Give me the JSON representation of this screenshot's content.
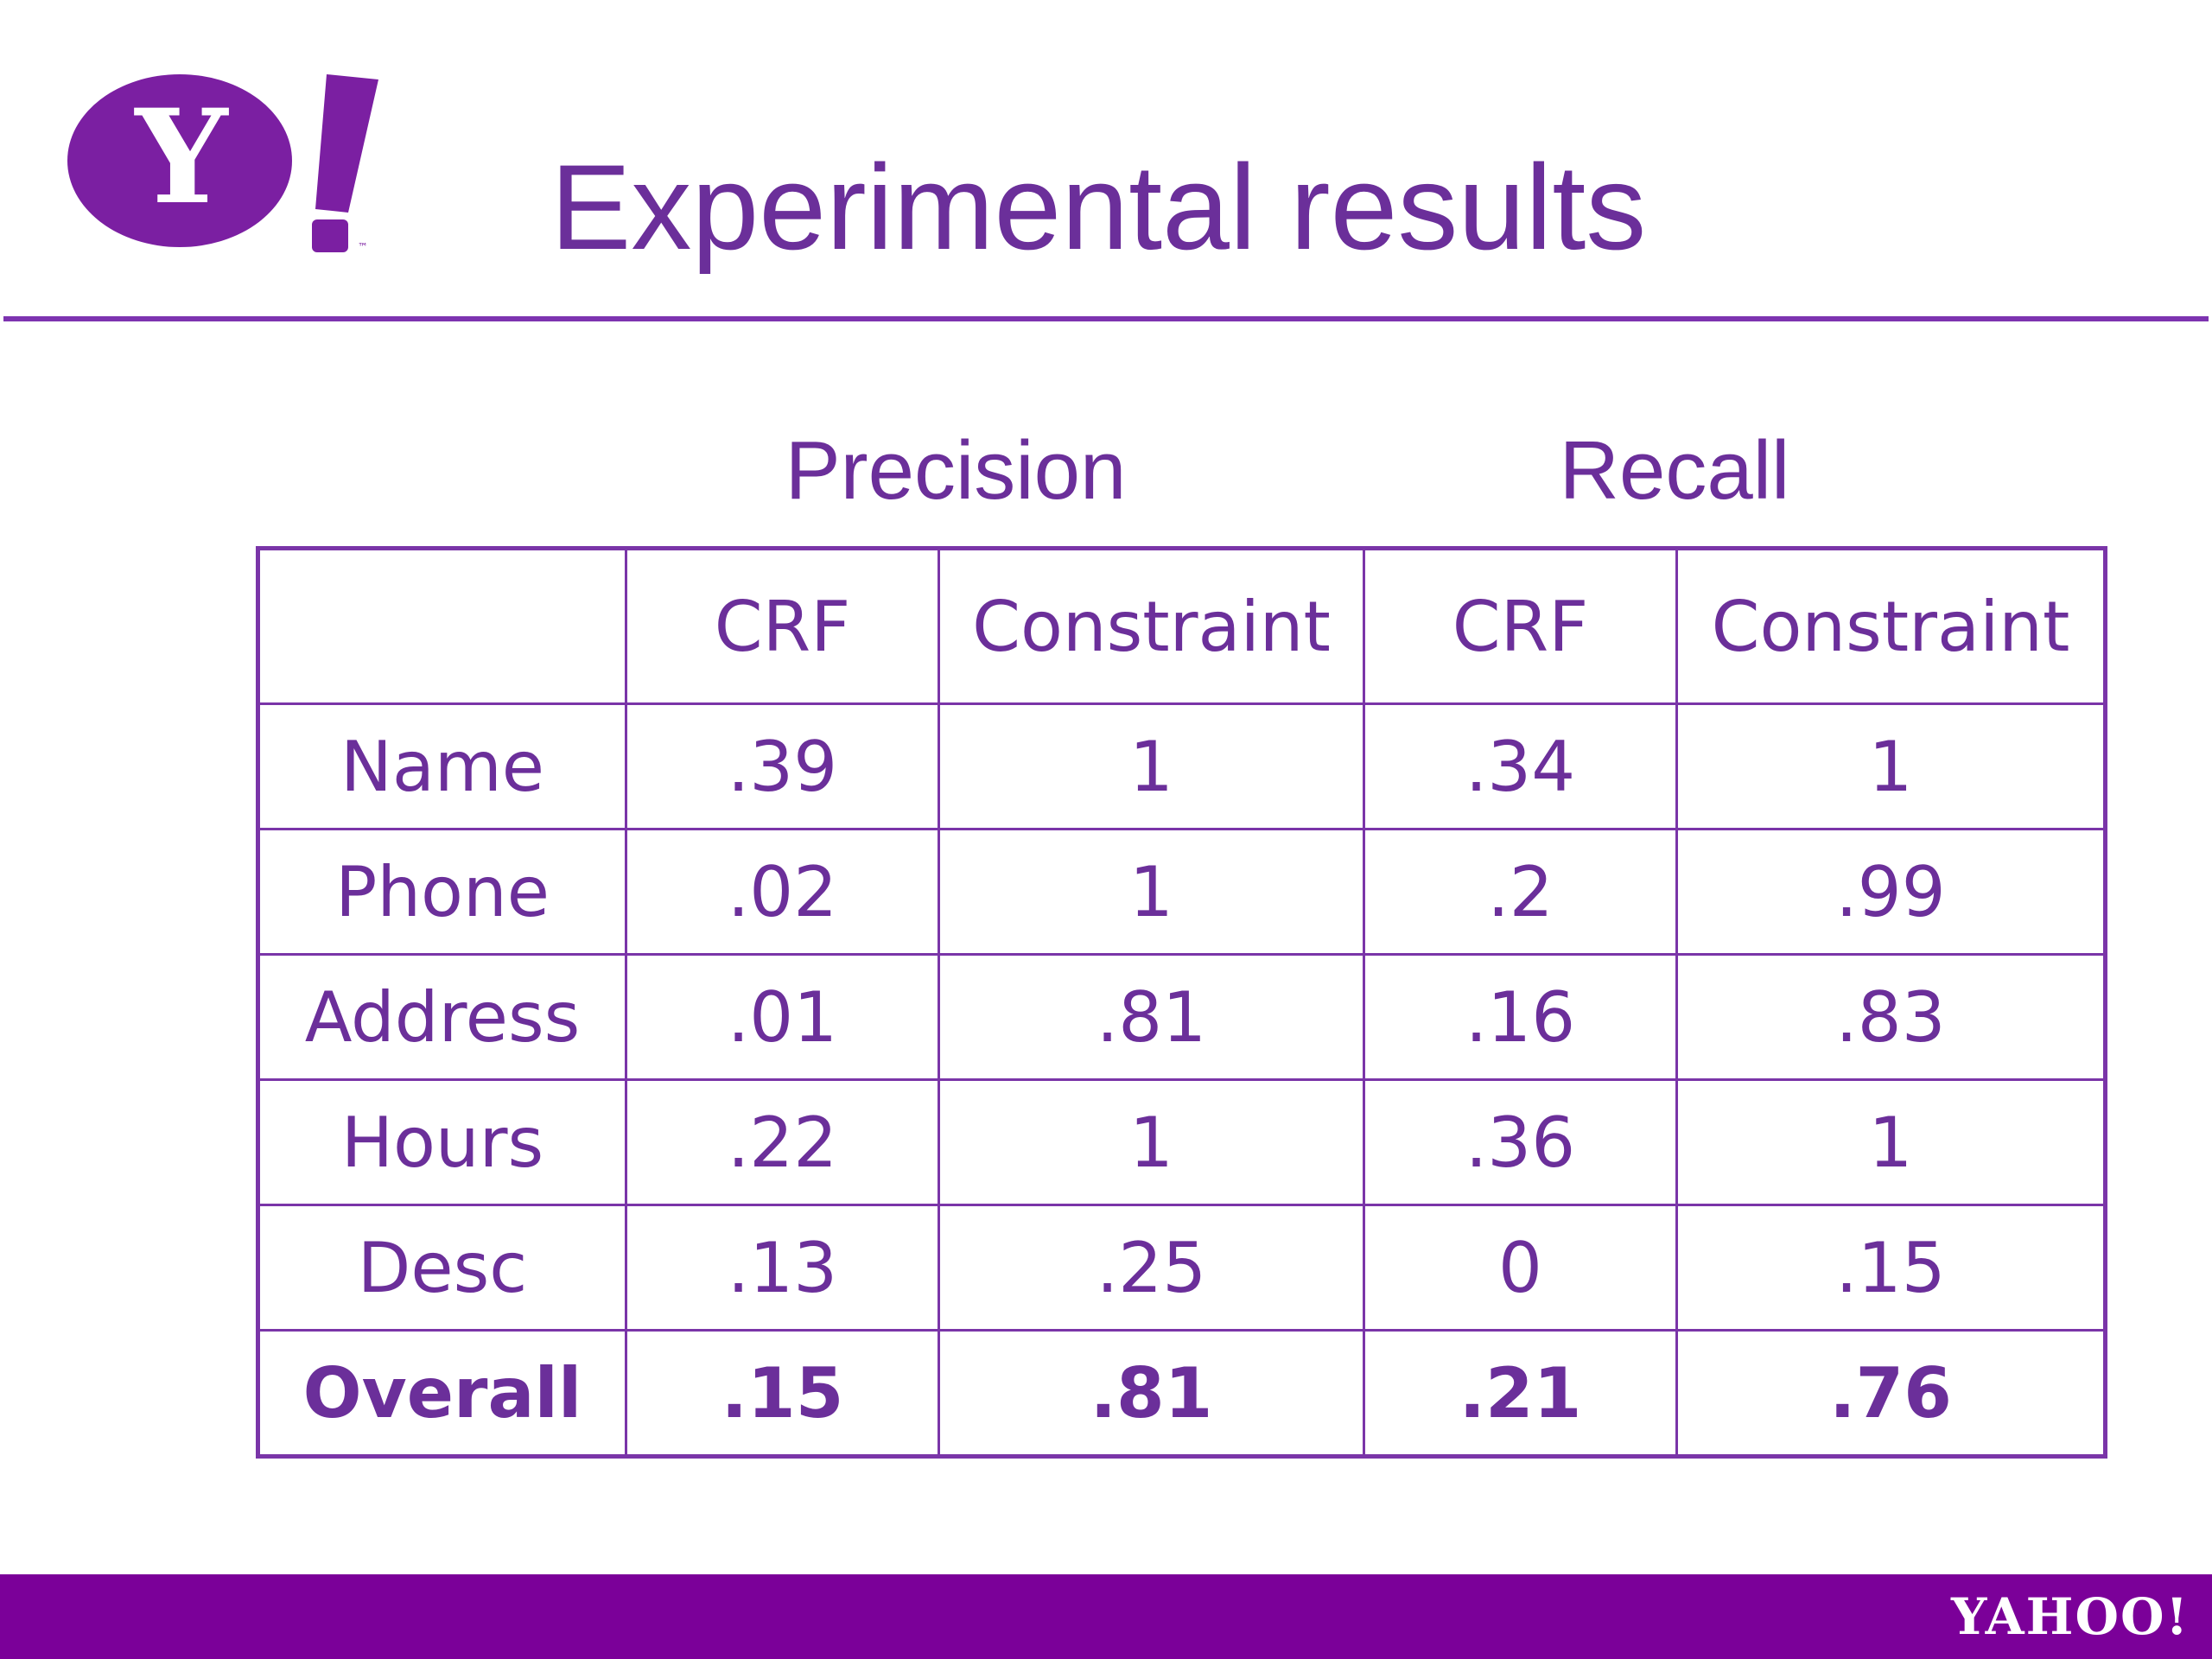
{
  "slide": {
    "title": "Experimental results",
    "logo_text": "Y!",
    "footer_logo_text": "YAHOO!",
    "colors": {
      "accent": "#6b2f9a",
      "logo_purple": "#7b1fa2",
      "footer_bar": "#7b0099",
      "table_border": "#7a35a8"
    }
  },
  "table": {
    "groups": [
      "Precision",
      "Recall"
    ],
    "columns": [
      "",
      "CRF",
      "Constraint",
      "CRF",
      "Constraint"
    ],
    "rows": [
      {
        "label": "Name",
        "values": [
          ".39",
          "1",
          ".34",
          "1"
        ],
        "bold": false
      },
      {
        "label": "Phone",
        "values": [
          ".02",
          "1",
          ".2",
          ".99"
        ],
        "bold": false
      },
      {
        "label": "Address",
        "values": [
          ".01",
          ".81",
          ".16",
          ".83"
        ],
        "bold": false
      },
      {
        "label": "Hours",
        "values": [
          ".22",
          "1",
          ".36",
          "1"
        ],
        "bold": false
      },
      {
        "label": "Desc",
        "values": [
          ".13",
          ".25",
          "0",
          ".15"
        ],
        "bold": false
      },
      {
        "label": "Overall",
        "values": [
          ".15",
          ".81",
          ".21",
          ".76"
        ],
        "bold": true
      }
    ]
  }
}
